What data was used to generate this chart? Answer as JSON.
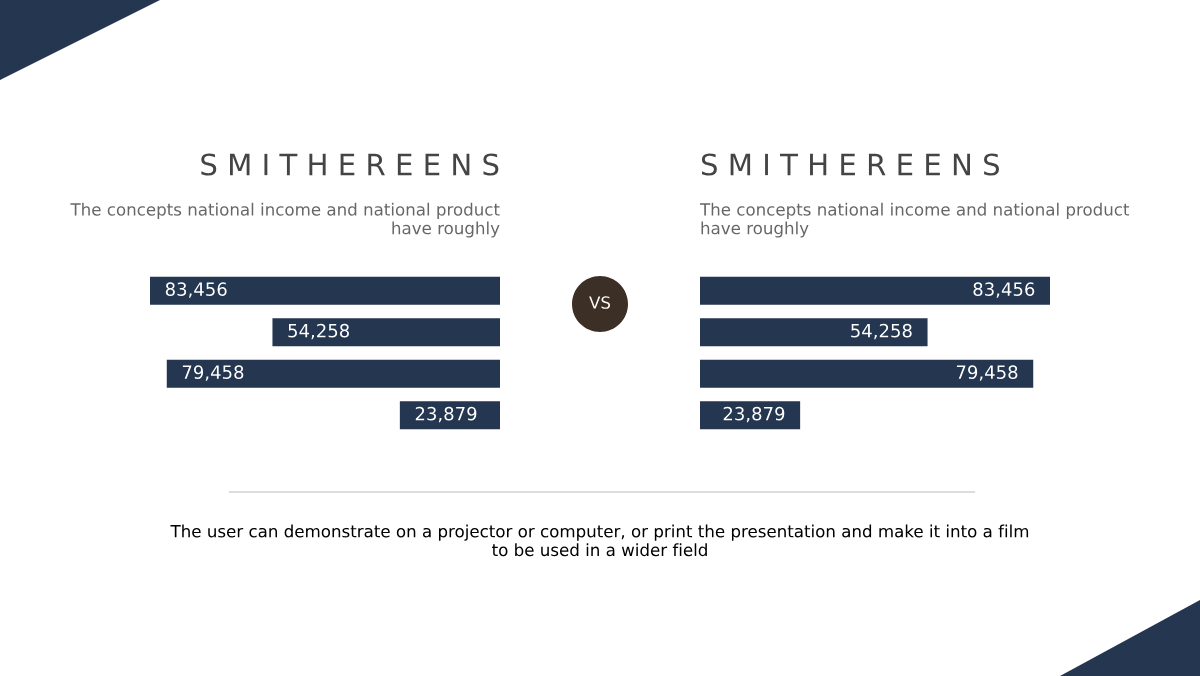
{
  "chart_data": [
    {
      "type": "bar",
      "orientation": "horizontal",
      "title": "S M I T H E R E E N S",
      "subtitle": "The concepts national income and national product\nhave roughly",
      "categories": [
        null,
        null,
        null,
        null
      ],
      "values": [
        83456,
        54258,
        79458,
        23879
      ],
      "color": "#243650",
      "tick_labels": false,
      "grid": false,
      "legend": false,
      "data_labels": true,
      "value_labels": [
        "83,456",
        "54,258",
        "79,458",
        "23,879"
      ]
    },
    {
      "type": "bar",
      "orientation": "horizontal",
      "title": "S M I T H E R E E N S",
      "subtitle": "The concepts national income and national product\nhave roughly",
      "categories": [
        null,
        null,
        null,
        null
      ],
      "values": [
        83456,
        54258,
        79458,
        23879
      ],
      "color": "#243650",
      "tick_labels": false,
      "grid": false,
      "legend": false,
      "data_labels": true,
      "value_labels": [
        "83,456",
        "54,258",
        "79,458",
        "23,879"
      ]
    },
    {
      "type": "other",
      "annotations": [
        "VS",
        "The user can demonstrate on a projector or computer, or print the presentation and make it into a film\nto be used in a wider field"
      ]
    }
  ]
}
